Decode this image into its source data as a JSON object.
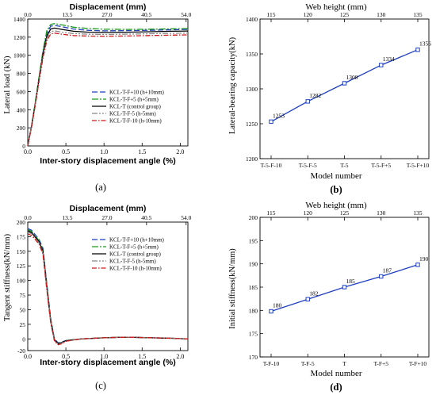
{
  "panel_labels": [
    "(a)",
    "(b)",
    "(c)",
    "(d)"
  ],
  "series_styles": [
    {
      "color": "#1f3fbf",
      "dash": "7,3"
    },
    {
      "color": "#1a9a1a",
      "dash": "8,2,2,2"
    },
    {
      "color": "#000000",
      "dash": ""
    },
    {
      "color": "#888888",
      "dash": "7,2,2,2,2,2"
    },
    {
      "color": "#d21a1a",
      "dash": "6,2,1.5,2"
    }
  ],
  "chart_data": [
    {
      "id": "a",
      "type": "line",
      "xlabel": "Inter-story displacement angle (%)",
      "ylabel": "Lateral load (kN)",
      "top_xlabel": "Displacement (mm)",
      "xlim": [
        0,
        2.1
      ],
      "ylim": [
        0,
        1400
      ],
      "xticks": [
        "0.0",
        "0.5",
        "1.0",
        "1.5",
        "2.0"
      ],
      "xtick_values": [
        0,
        0.5,
        1.0,
        1.5,
        2.0
      ],
      "yticks": [
        0,
        200,
        400,
        600,
        800,
        1000,
        1200,
        1400
      ],
      "top_xticks": [
        "0.0",
        "13.5",
        "27.0",
        "40.5",
        "54.0"
      ],
      "legend_position": "lower-right",
      "series": [
        {
          "name": "KCL-T-F+10 (h+10mm)",
          "x": [
            0,
            0.05,
            0.1,
            0.15,
            0.2,
            0.25,
            0.3,
            0.35,
            0.45,
            0.6,
            0.8,
            1.0,
            1.3,
            1.6,
            1.9,
            2.1
          ],
          "y": [
            0,
            220,
            480,
            760,
            1030,
            1240,
            1320,
            1330,
            1315,
            1290,
            1275,
            1270,
            1272,
            1276,
            1282,
            1285
          ]
        },
        {
          "name": "KCL-T-F+5 (h+5mm)",
          "x": [
            0,
            0.05,
            0.1,
            0.15,
            0.2,
            0.25,
            0.3,
            0.35,
            0.45,
            0.6,
            0.8,
            1.0,
            1.3,
            1.6,
            1.9,
            2.1
          ],
          "y": [
            0,
            225,
            490,
            770,
            1050,
            1270,
            1340,
            1350,
            1335,
            1310,
            1295,
            1288,
            1285,
            1288,
            1292,
            1295
          ]
        },
        {
          "name": "KCL-T (control group)",
          "x": [
            0,
            0.05,
            0.1,
            0.15,
            0.2,
            0.25,
            0.3,
            0.35,
            0.45,
            0.6,
            0.8,
            1.0,
            1.3,
            1.6,
            1.9,
            2.1
          ],
          "y": [
            0,
            215,
            470,
            745,
            1010,
            1210,
            1290,
            1300,
            1285,
            1265,
            1255,
            1252,
            1255,
            1260,
            1265,
            1268
          ]
        },
        {
          "name": "KCL-T-F-5 (h-5mm)",
          "x": [
            0,
            0.05,
            0.1,
            0.15,
            0.2,
            0.25,
            0.3,
            0.35,
            0.45,
            0.6,
            0.8,
            1.0,
            1.3,
            1.6,
            1.9,
            2.1
          ],
          "y": [
            0,
            212,
            462,
            732,
            990,
            1185,
            1260,
            1270,
            1255,
            1240,
            1232,
            1230,
            1233,
            1238,
            1242,
            1245
          ]
        },
        {
          "name": "KCL-T-F-10 (h-10mm)",
          "x": [
            0,
            0.05,
            0.1,
            0.15,
            0.2,
            0.25,
            0.3,
            0.35,
            0.45,
            0.6,
            0.8,
            1.0,
            1.3,
            1.6,
            1.9,
            2.1
          ],
          "y": [
            0,
            208,
            455,
            720,
            970,
            1160,
            1235,
            1245,
            1232,
            1218,
            1212,
            1210,
            1213,
            1218,
            1222,
            1225
          ]
        }
      ]
    },
    {
      "id": "b",
      "type": "line",
      "xlabel": "Model number",
      "ylabel": "Lateral-bearing capacity(kN)",
      "top_xlabel": "Web height (mm)",
      "categories": [
        "T-5-F-10",
        "T-5-F-5",
        "T-5",
        "T-5-F+5",
        "T-5-F+10"
      ],
      "top_xticks": [
        "115",
        "120",
        "125",
        "130",
        "135"
      ],
      "values": [
        1253,
        1282,
        1308,
        1334,
        1356
      ],
      "data_labels": [
        "1253",
        "1282",
        "1308",
        "1334",
        "1356"
      ],
      "ylim": [
        1200,
        1400
      ],
      "yticks": [
        1200,
        1250,
        1300,
        1350,
        1400
      ],
      "color": "#1f3fbf"
    },
    {
      "id": "c",
      "type": "line",
      "xlabel": "Inter-story displacement angle (%)",
      "ylabel": "Tangent stiffness(kN/mm)",
      "top_xlabel": "Displacement (mm)",
      "xlim": [
        0,
        2.1
      ],
      "ylim": [
        -20,
        200
      ],
      "xticks": [
        "0.0",
        "0.5",
        "1.0",
        "1.5",
        "2.0"
      ],
      "xtick_values": [
        0,
        0.5,
        1.0,
        1.5,
        2.0
      ],
      "yticks": [
        -20,
        0,
        25,
        50,
        75,
        100,
        125,
        150,
        175,
        200
      ],
      "top_xticks": [
        "0.0",
        "13.5",
        "27.0",
        "40.5",
        "54.0"
      ],
      "legend_position": "top-right",
      "series": [
        {
          "name": "KCL-T-F+10 (h+10mm)",
          "x": [
            0,
            0.05,
            0.1,
            0.15,
            0.2,
            0.25,
            0.3,
            0.35,
            0.4,
            0.45,
            0.5,
            0.7,
            1.0,
            1.3,
            1.6,
            1.9,
            2.1
          ],
          "y": [
            189,
            186,
            178,
            170,
            155,
            95,
            35,
            0,
            -7,
            -5,
            -3,
            0,
            2,
            3,
            2,
            1,
            0
          ]
        },
        {
          "name": "KCL-T-F+5 (h+5mm)",
          "x": [
            0,
            0.05,
            0.1,
            0.15,
            0.2,
            0.25,
            0.3,
            0.35,
            0.4,
            0.45,
            0.5,
            0.7,
            1.0,
            1.3,
            1.6,
            1.9,
            2.1
          ],
          "y": [
            187,
            184,
            176,
            168,
            152,
            92,
            33,
            -1,
            -8,
            -6,
            -3,
            0,
            2,
            3,
            2,
            1,
            0
          ]
        },
        {
          "name": "KCL-T (control group)",
          "x": [
            0,
            0.05,
            0.1,
            0.15,
            0.2,
            0.25,
            0.3,
            0.35,
            0.4,
            0.45,
            0.5,
            0.7,
            1.0,
            1.3,
            1.6,
            1.9,
            2.1
          ],
          "y": [
            185,
            182,
            174,
            166,
            150,
            90,
            31,
            -2,
            -8,
            -6,
            -3,
            0,
            2,
            3,
            2,
            1,
            0
          ]
        },
        {
          "name": "KCL-T-F-5 (h-5mm)",
          "x": [
            0,
            0.05,
            0.1,
            0.15,
            0.2,
            0.25,
            0.3,
            0.35,
            0.4,
            0.45,
            0.5,
            0.7,
            1.0,
            1.3,
            1.6,
            1.9,
            2.1
          ],
          "y": [
            183,
            180,
            172,
            164,
            147,
            87,
            30,
            -3,
            -9,
            -7,
            -4,
            0,
            2,
            3,
            2,
            1,
            0
          ]
        },
        {
          "name": "KCL-T-F-10 (h-10mm)",
          "x": [
            0,
            0.05,
            0.1,
            0.15,
            0.2,
            0.25,
            0.3,
            0.35,
            0.4,
            0.45,
            0.5,
            0.7,
            1.0,
            1.3,
            1.6,
            1.9,
            2.1
          ],
          "y": [
            180,
            177,
            170,
            162,
            145,
            85,
            28,
            -4,
            -10,
            -8,
            -4,
            0,
            2,
            3,
            2,
            1,
            0
          ]
        }
      ]
    },
    {
      "id": "d",
      "type": "line",
      "xlabel": "Model number",
      "ylabel": "Initial stiffness(kN/mm)",
      "top_xlabel": "Web height (mm)",
      "categories": [
        "T-F-10",
        "T-F-5",
        "T",
        "T-F+5",
        "T-F+10"
      ],
      "top_xticks": [
        "115",
        "120",
        "125",
        "130",
        "135"
      ],
      "values": [
        179.8,
        182.4,
        185.0,
        187.3,
        189.8
      ],
      "data_labels": [
        "180",
        "182",
        "185",
        "187",
        "190"
      ],
      "ylim": [
        170,
        200
      ],
      "yticks": [
        170,
        175,
        180,
        185,
        190,
        195,
        200
      ],
      "color": "#1f3fbf"
    }
  ]
}
